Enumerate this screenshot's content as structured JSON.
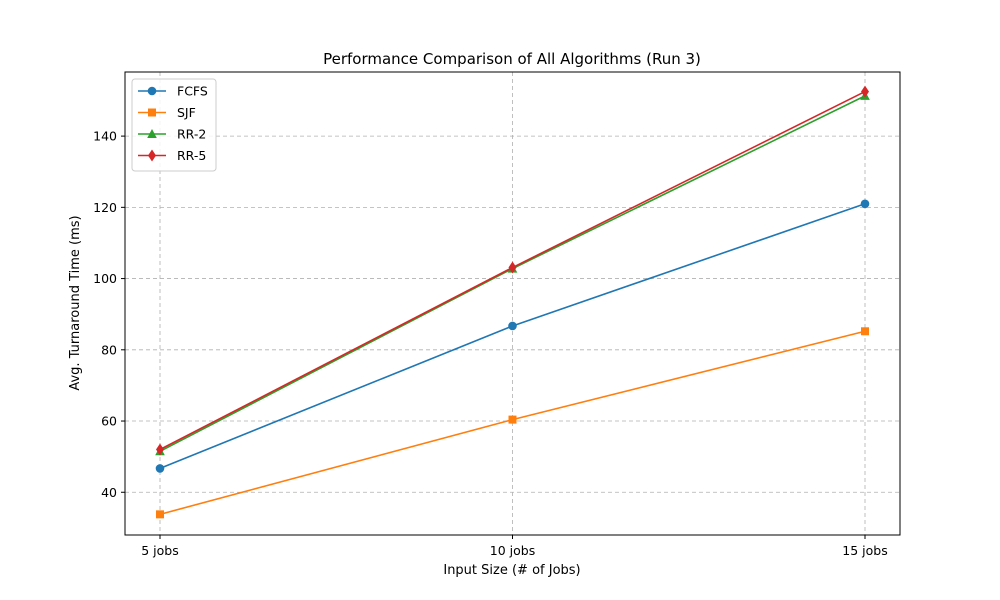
{
  "chart_data": {
    "type": "line",
    "title": "Performance Comparison of All Algorithms (Run 3)",
    "xlabel": "Input Size (# of Jobs)",
    "ylabel": "Avg. Turnaround Time (ms)",
    "categories": [
      "5 jobs",
      "10 jobs",
      "15 jobs"
    ],
    "ylim": [
      28,
      158
    ],
    "yticks": [
      40,
      60,
      80,
      100,
      120,
      140
    ],
    "grid": true,
    "legend_position": "top-left",
    "series": [
      {
        "name": "FCFS",
        "values": [
          46.7,
          86.7,
          121.0
        ],
        "color": "#1f77b4",
        "marker": "circle"
      },
      {
        "name": "SJF",
        "values": [
          33.8,
          60.4,
          85.2
        ],
        "color": "#ff7f0e",
        "marker": "square"
      },
      {
        "name": "RR-2",
        "values": [
          51.5,
          102.8,
          151.3
        ],
        "color": "#2ca02c",
        "marker": "triangle"
      },
      {
        "name": "RR-5",
        "values": [
          52.0,
          103.1,
          152.5
        ],
        "color": "#d62728",
        "marker": "diamond"
      }
    ]
  }
}
